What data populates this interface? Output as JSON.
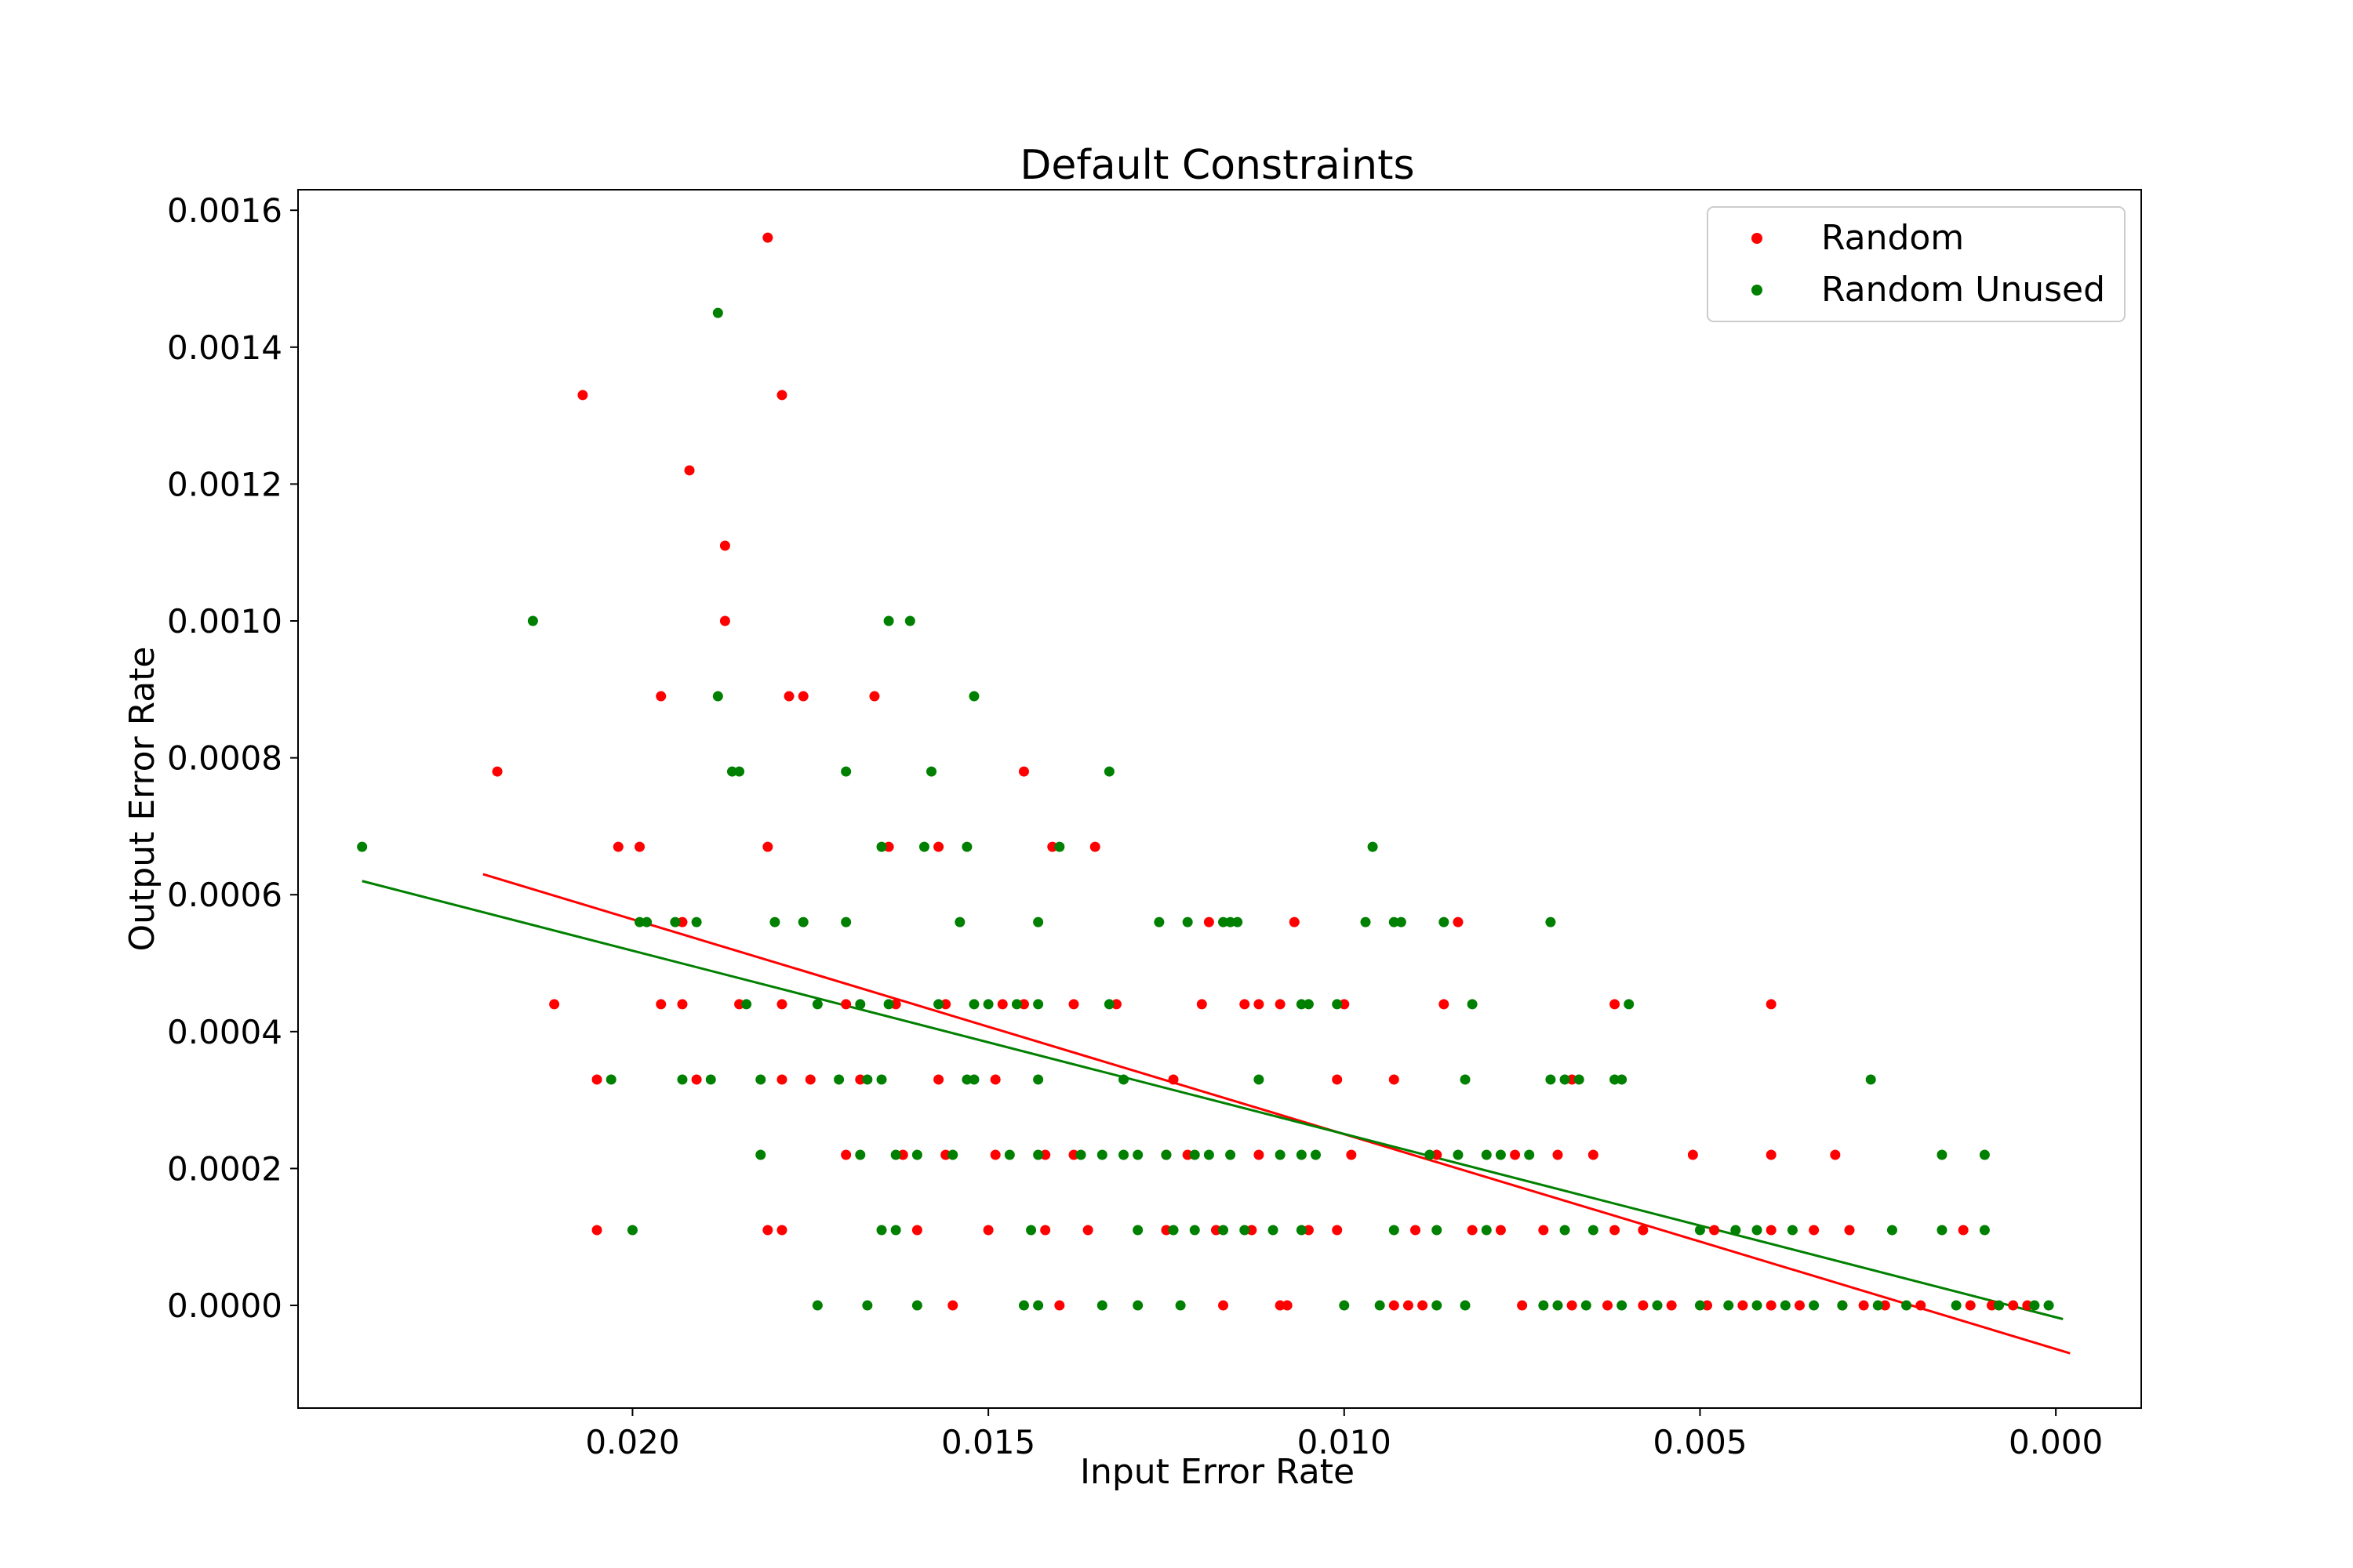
{
  "chart_data": {
    "type": "scatter",
    "title": "Default Constraints",
    "xlabel": "Input Error Rate",
    "ylabel": "Output Error Rate",
    "x_inverted": true,
    "xlim": [
      0.0247,
      -0.0012
    ],
    "ylim": [
      -0.00015,
      0.00163
    ],
    "x_ticks": [
      0.02,
      0.015,
      0.01,
      0.005,
      0.0
    ],
    "x_tick_labels": [
      "0.020",
      "0.015",
      "0.010",
      "0.005",
      "0.000"
    ],
    "y_ticks": [
      0.0,
      0.0002,
      0.0004,
      0.0006,
      0.0008,
      0.001,
      0.0012,
      0.0014,
      0.0016
    ],
    "y_tick_labels": [
      "0.0000",
      "0.0002",
      "0.0004",
      "0.0006",
      "0.0008",
      "0.0010",
      "0.0012",
      "0.0014",
      "0.0016"
    ],
    "legend_position": "top-right",
    "series": [
      {
        "name": "Random",
        "color": "#ff0000",
        "points": [
          [
            0.0181,
            0.00156
          ],
          [
            0.0207,
            0.00133
          ],
          [
            0.0179,
            0.00133
          ],
          [
            0.0192,
            0.00122
          ],
          [
            0.0187,
            0.00111
          ],
          [
            0.0187,
            0.001
          ],
          [
            0.0196,
            0.00089
          ],
          [
            0.0178,
            0.00089
          ],
          [
            0.0176,
            0.00089
          ],
          [
            0.0166,
            0.00089
          ],
          [
            0.0219,
            0.00078
          ],
          [
            0.0145,
            0.00078
          ],
          [
            0.0202,
            0.00067
          ],
          [
            0.0199,
            0.00067
          ],
          [
            0.0181,
            0.00067
          ],
          [
            0.0164,
            0.00067
          ],
          [
            0.0157,
            0.00067
          ],
          [
            0.0141,
            0.00067
          ],
          [
            0.0135,
            0.00067
          ],
          [
            0.0193,
            0.00056
          ],
          [
            0.0119,
            0.00056
          ],
          [
            0.0107,
            0.00056
          ],
          [
            0.0084,
            0.00056
          ],
          [
            0.0211,
            0.00044
          ],
          [
            0.0196,
            0.00044
          ],
          [
            0.0193,
            0.00044
          ],
          [
            0.0185,
            0.00044
          ],
          [
            0.0179,
            0.00044
          ],
          [
            0.017,
            0.00044
          ],
          [
            0.0163,
            0.00044
          ],
          [
            0.0156,
            0.00044
          ],
          [
            0.0148,
            0.00044
          ],
          [
            0.0145,
            0.00044
          ],
          [
            0.0138,
            0.00044
          ],
          [
            0.0132,
            0.00044
          ],
          [
            0.012,
            0.00044
          ],
          [
            0.0114,
            0.00044
          ],
          [
            0.0112,
            0.00044
          ],
          [
            0.0109,
            0.00044
          ],
          [
            0.01,
            0.00044
          ],
          [
            0.0086,
            0.00044
          ],
          [
            0.0062,
            0.00044
          ],
          [
            0.004,
            0.00044
          ],
          [
            0.0205,
            0.00033
          ],
          [
            0.0191,
            0.00033
          ],
          [
            0.0179,
            0.00033
          ],
          [
            0.0175,
            0.00033
          ],
          [
            0.0168,
            0.00033
          ],
          [
            0.0157,
            0.00033
          ],
          [
            0.0149,
            0.00033
          ],
          [
            0.0124,
            0.00033
          ],
          [
            0.0101,
            0.00033
          ],
          [
            0.0093,
            0.00033
          ],
          [
            0.0068,
            0.00033
          ],
          [
            0.017,
            0.00022
          ],
          [
            0.0162,
            0.00022
          ],
          [
            0.0156,
            0.00022
          ],
          [
            0.0149,
            0.00022
          ],
          [
            0.0142,
            0.00022
          ],
          [
            0.0138,
            0.00022
          ],
          [
            0.0125,
            0.00022
          ],
          [
            0.0122,
            0.00022
          ],
          [
            0.0112,
            0.00022
          ],
          [
            0.0099,
            0.00022
          ],
          [
            0.0087,
            0.00022
          ],
          [
            0.0076,
            0.00022
          ],
          [
            0.007,
            0.00022
          ],
          [
            0.0065,
            0.00022
          ],
          [
            0.0051,
            0.00022
          ],
          [
            0.004,
            0.00022
          ],
          [
            0.0031,
            0.00022
          ],
          [
            0.0205,
            0.00011
          ],
          [
            0.0181,
            0.00011
          ],
          [
            0.0179,
            0.00011
          ],
          [
            0.016,
            0.00011
          ],
          [
            0.015,
            0.00011
          ],
          [
            0.0142,
            0.00011
          ],
          [
            0.0136,
            0.00011
          ],
          [
            0.0125,
            0.00011
          ],
          [
            0.0118,
            0.00011
          ],
          [
            0.0113,
            0.00011
          ],
          [
            0.0105,
            0.00011
          ],
          [
            0.0101,
            0.00011
          ],
          [
            0.009,
            0.00011
          ],
          [
            0.0082,
            0.00011
          ],
          [
            0.0078,
            0.00011
          ],
          [
            0.0072,
            0.00011
          ],
          [
            0.0062,
            0.00011
          ],
          [
            0.0058,
            0.00011
          ],
          [
            0.0048,
            0.00011
          ],
          [
            0.004,
            0.00011
          ],
          [
            0.0034,
            0.00011
          ],
          [
            0.0029,
            0.00011
          ],
          [
            0.0013,
            0.00011
          ],
          [
            0.0155,
            0.0
          ],
          [
            0.014,
            0.0
          ],
          [
            0.0117,
            0.0
          ],
          [
            0.0109,
            0.0
          ],
          [
            0.0108,
            0.0
          ],
          [
            0.0093,
            0.0
          ],
          [
            0.0091,
            0.0
          ],
          [
            0.0089,
            0.0
          ],
          [
            0.0075,
            0.0
          ],
          [
            0.0068,
            0.0
          ],
          [
            0.0063,
            0.0
          ],
          [
            0.0058,
            0.0
          ],
          [
            0.0054,
            0.0
          ],
          [
            0.0049,
            0.0
          ],
          [
            0.0044,
            0.0
          ],
          [
            0.004,
            0.0
          ],
          [
            0.0036,
            0.0
          ],
          [
            0.003,
            0.0
          ],
          [
            0.0027,
            0.0
          ],
          [
            0.0024,
            0.0
          ],
          [
            0.0019,
            0.0
          ],
          [
            0.0012,
            0.0
          ],
          [
            0.0009,
            0.0
          ],
          [
            0.0006,
            0.0
          ],
          [
            0.0004,
            0.0
          ]
        ],
        "fit": [
          [
            0.0221,
            0.00063
          ],
          [
            -0.0002,
            -7e-05
          ]
        ]
      },
      {
        "name": "Random Unused",
        "color": "#008000",
        "points": [
          [
            0.0188,
            0.00145
          ],
          [
            0.0214,
            0.001
          ],
          [
            0.0164,
            0.001
          ],
          [
            0.0161,
            0.001
          ],
          [
            0.0188,
            0.00089
          ],
          [
            0.0152,
            0.00089
          ],
          [
            0.0186,
            0.00078
          ],
          [
            0.0185,
            0.00078
          ],
          [
            0.017,
            0.00078
          ],
          [
            0.0158,
            0.00078
          ],
          [
            0.0133,
            0.00078
          ],
          [
            0.0238,
            0.00067
          ],
          [
            0.0165,
            0.00067
          ],
          [
            0.0159,
            0.00067
          ],
          [
            0.0153,
            0.00067
          ],
          [
            0.014,
            0.00067
          ],
          [
            0.0096,
            0.00067
          ],
          [
            0.0199,
            0.00056
          ],
          [
            0.0198,
            0.00056
          ],
          [
            0.0194,
            0.00056
          ],
          [
            0.0191,
            0.00056
          ],
          [
            0.018,
            0.00056
          ],
          [
            0.0176,
            0.00056
          ],
          [
            0.017,
            0.00056
          ],
          [
            0.0154,
            0.00056
          ],
          [
            0.0143,
            0.00056
          ],
          [
            0.0126,
            0.00056
          ],
          [
            0.0122,
            0.00056
          ],
          [
            0.0117,
            0.00056
          ],
          [
            0.0116,
            0.00056
          ],
          [
            0.0115,
            0.00056
          ],
          [
            0.0097,
            0.00056
          ],
          [
            0.0093,
            0.00056
          ],
          [
            0.0092,
            0.00056
          ],
          [
            0.0086,
            0.00056
          ],
          [
            0.0071,
            0.00056
          ],
          [
            0.0184,
            0.00044
          ],
          [
            0.0174,
            0.00044
          ],
          [
            0.0168,
            0.00044
          ],
          [
            0.0164,
            0.00044
          ],
          [
            0.0157,
            0.00044
          ],
          [
            0.0152,
            0.00044
          ],
          [
            0.015,
            0.00044
          ],
          [
            0.0146,
            0.00044
          ],
          [
            0.0143,
            0.00044
          ],
          [
            0.0133,
            0.00044
          ],
          [
            0.0106,
            0.00044
          ],
          [
            0.0105,
            0.00044
          ],
          [
            0.0101,
            0.00044
          ],
          [
            0.0082,
            0.00044
          ],
          [
            0.006,
            0.00044
          ],
          [
            0.0203,
            0.00033
          ],
          [
            0.0193,
            0.00033
          ],
          [
            0.0189,
            0.00033
          ],
          [
            0.0182,
            0.00033
          ],
          [
            0.0171,
            0.00033
          ],
          [
            0.0167,
            0.00033
          ],
          [
            0.0165,
            0.00033
          ],
          [
            0.0153,
            0.00033
          ],
          [
            0.0152,
            0.00033
          ],
          [
            0.0143,
            0.00033
          ],
          [
            0.0131,
            0.00033
          ],
          [
            0.0112,
            0.00033
          ],
          [
            0.0083,
            0.00033
          ],
          [
            0.0071,
            0.00033
          ],
          [
            0.0069,
            0.00033
          ],
          [
            0.0067,
            0.00033
          ],
          [
            0.0062,
            0.00033
          ],
          [
            0.0061,
            0.00033
          ],
          [
            0.0026,
            0.00033
          ],
          [
            0.0182,
            0.00022
          ],
          [
            0.0168,
            0.00022
          ],
          [
            0.0163,
            0.00022
          ],
          [
            0.016,
            0.00022
          ],
          [
            0.0155,
            0.00022
          ],
          [
            0.0147,
            0.00022
          ],
          [
            0.0143,
            0.00022
          ],
          [
            0.0137,
            0.00022
          ],
          [
            0.0134,
            0.00022
          ],
          [
            0.0131,
            0.00022
          ],
          [
            0.0129,
            0.00022
          ],
          [
            0.0125,
            0.00022
          ],
          [
            0.0121,
            0.00022
          ],
          [
            0.0119,
            0.00022
          ],
          [
            0.0116,
            0.00022
          ],
          [
            0.0109,
            0.00022
          ],
          [
            0.0106,
            0.00022
          ],
          [
            0.0104,
            0.00022
          ],
          [
            0.0088,
            0.00022
          ],
          [
            0.0084,
            0.00022
          ],
          [
            0.008,
            0.00022
          ],
          [
            0.0078,
            0.00022
          ],
          [
            0.0074,
            0.00022
          ],
          [
            0.0016,
            0.00022
          ],
          [
            0.001,
            0.00022
          ],
          [
            0.02,
            0.00011
          ],
          [
            0.0165,
            0.00011
          ],
          [
            0.0163,
            0.00011
          ],
          [
            0.0144,
            0.00011
          ],
          [
            0.0129,
            0.00011
          ],
          [
            0.0124,
            0.00011
          ],
          [
            0.0121,
            0.00011
          ],
          [
            0.0117,
            0.00011
          ],
          [
            0.0114,
            0.00011
          ],
          [
            0.011,
            0.00011
          ],
          [
            0.0106,
            0.00011
          ],
          [
            0.0093,
            0.00011
          ],
          [
            0.0087,
            0.00011
          ],
          [
            0.008,
            0.00011
          ],
          [
            0.0069,
            0.00011
          ],
          [
            0.0065,
            0.00011
          ],
          [
            0.005,
            0.00011
          ],
          [
            0.0045,
            0.00011
          ],
          [
            0.0042,
            0.00011
          ],
          [
            0.0037,
            0.00011
          ],
          [
            0.0023,
            0.00011
          ],
          [
            0.0016,
            0.00011
          ],
          [
            0.001,
            0.00011
          ],
          [
            0.0174,
            0.0
          ],
          [
            0.0167,
            0.0
          ],
          [
            0.016,
            0.0
          ],
          [
            0.0145,
            0.0
          ],
          [
            0.0143,
            0.0
          ],
          [
            0.0134,
            0.0
          ],
          [
            0.0129,
            0.0
          ],
          [
            0.0123,
            0.0
          ],
          [
            0.01,
            0.0
          ],
          [
            0.0095,
            0.0
          ],
          [
            0.0087,
            0.0
          ],
          [
            0.0083,
            0.0
          ],
          [
            0.0072,
            0.0
          ],
          [
            0.007,
            0.0
          ],
          [
            0.0066,
            0.0
          ],
          [
            0.0061,
            0.0
          ],
          [
            0.0056,
            0.0
          ],
          [
            0.005,
            0.0
          ],
          [
            0.0046,
            0.0
          ],
          [
            0.0042,
            0.0
          ],
          [
            0.0038,
            0.0
          ],
          [
            0.0034,
            0.0
          ],
          [
            0.003,
            0.0
          ],
          [
            0.0025,
            0.0
          ],
          [
            0.0021,
            0.0
          ],
          [
            0.0014,
            0.0
          ],
          [
            0.0008,
            0.0
          ],
          [
            0.0003,
            0.0
          ],
          [
            0.0001,
            0.0
          ]
        ],
        "fit": [
          [
            0.0238,
            0.00062
          ],
          [
            -0.0001,
            -2e-05
          ]
        ]
      }
    ]
  }
}
